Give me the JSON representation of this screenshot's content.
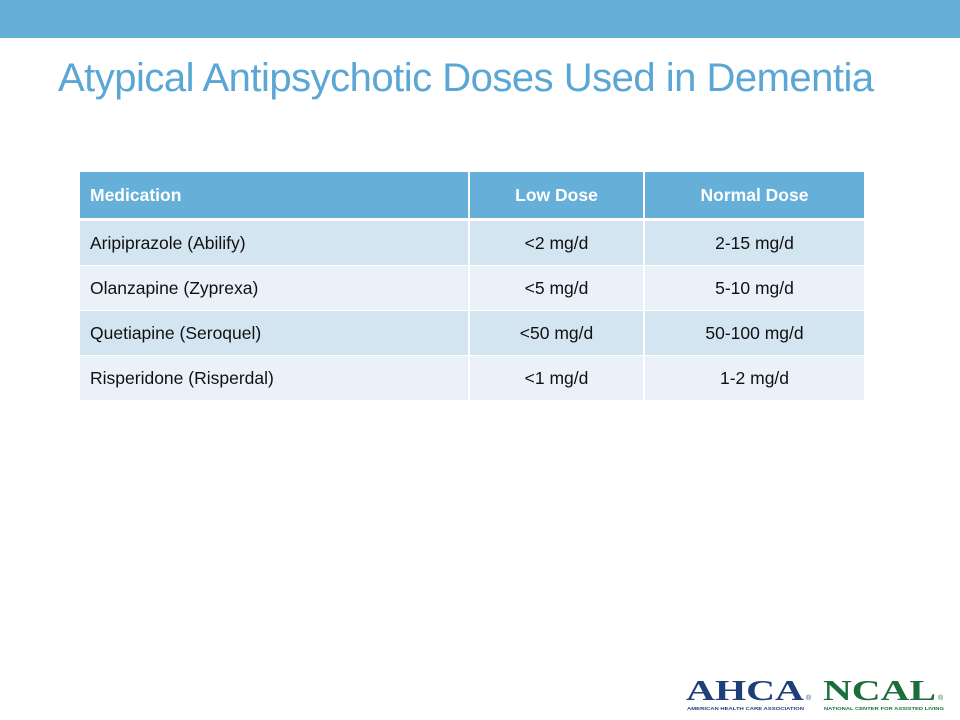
{
  "slide": {
    "title": "Atypical Antipsychotic Doses Used in Dementia"
  },
  "table": {
    "headers": [
      "Medication",
      "Low Dose",
      "Normal Dose"
    ],
    "rows": [
      [
        "Aripiprazole (Abilify)",
        "<2 mg/d",
        "2-15 mg/d"
      ],
      [
        "Olanzapine (Zyprexa)",
        "<5 mg/d",
        "5-10 mg/d"
      ],
      [
        "Quetiapine (Seroquel)",
        "<50 mg/d",
        "50-100 mg/d"
      ],
      [
        "Risperidone (Risperdal)",
        "<1 mg/d",
        "1-2 mg/d"
      ]
    ]
  },
  "logos": {
    "ahca": {
      "name": "AHCA",
      "reg": "®",
      "tagline": "AMERICAN HEALTH CARE ASSOCIATION",
      "color": "#1f3f7a"
    },
    "ncal": {
      "name": "NCAL",
      "reg": "®",
      "tagline": "NATIONAL CENTER FOR ASSISTED LIVING",
      "color": "#1b6e3a"
    }
  },
  "colors": {
    "accent": "#66afd8",
    "title": "#5aa6d4",
    "row_odd": "#d4e5f2",
    "row_even": "#eaf1f8"
  }
}
